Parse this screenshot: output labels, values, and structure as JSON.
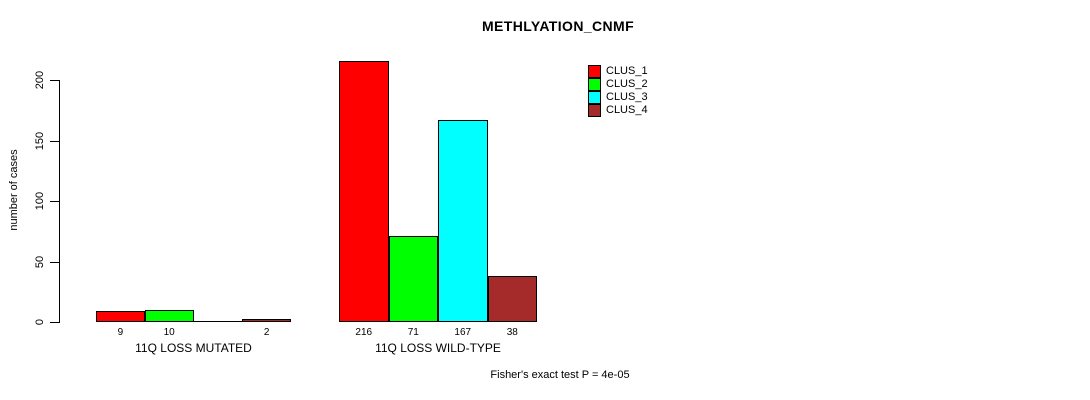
{
  "chart_data": {
    "type": "bar",
    "title": "METHLYATION_CNMF",
    "ylabel": "number of cases",
    "xlabel": "",
    "annotation": "Fisher's exact test P = 4e-05",
    "categories": [
      "11Q LOSS MUTATED",
      "11Q LOSS WILD-TYPE"
    ],
    "series": [
      {
        "name": "CLUS_1",
        "color": "#FF0000",
        "values": [
          9,
          216
        ]
      },
      {
        "name": "CLUS_2",
        "color": "#00FF00",
        "values": [
          10,
          71
        ]
      },
      {
        "name": "CLUS_3",
        "color": "#00FFFF",
        "values": [
          0,
          167
        ]
      },
      {
        "name": "CLUS_4",
        "color": "#A52A2A",
        "values": [
          2,
          38
        ]
      }
    ],
    "value_labels": [
      [
        "9",
        "10",
        "",
        "2"
      ],
      [
        "216",
        "71",
        "167",
        "38"
      ]
    ],
    "yticks": [
      0,
      50,
      100,
      150,
      200
    ],
    "ylim": [
      0,
      220
    ],
    "grid": false,
    "legend_position": "top-right",
    "legend": [
      "CLUS_1",
      "CLUS_2",
      "CLUS_3",
      "CLUS_4"
    ],
    "axis_color": "#000000",
    "background_color": "#FFFFFF"
  }
}
